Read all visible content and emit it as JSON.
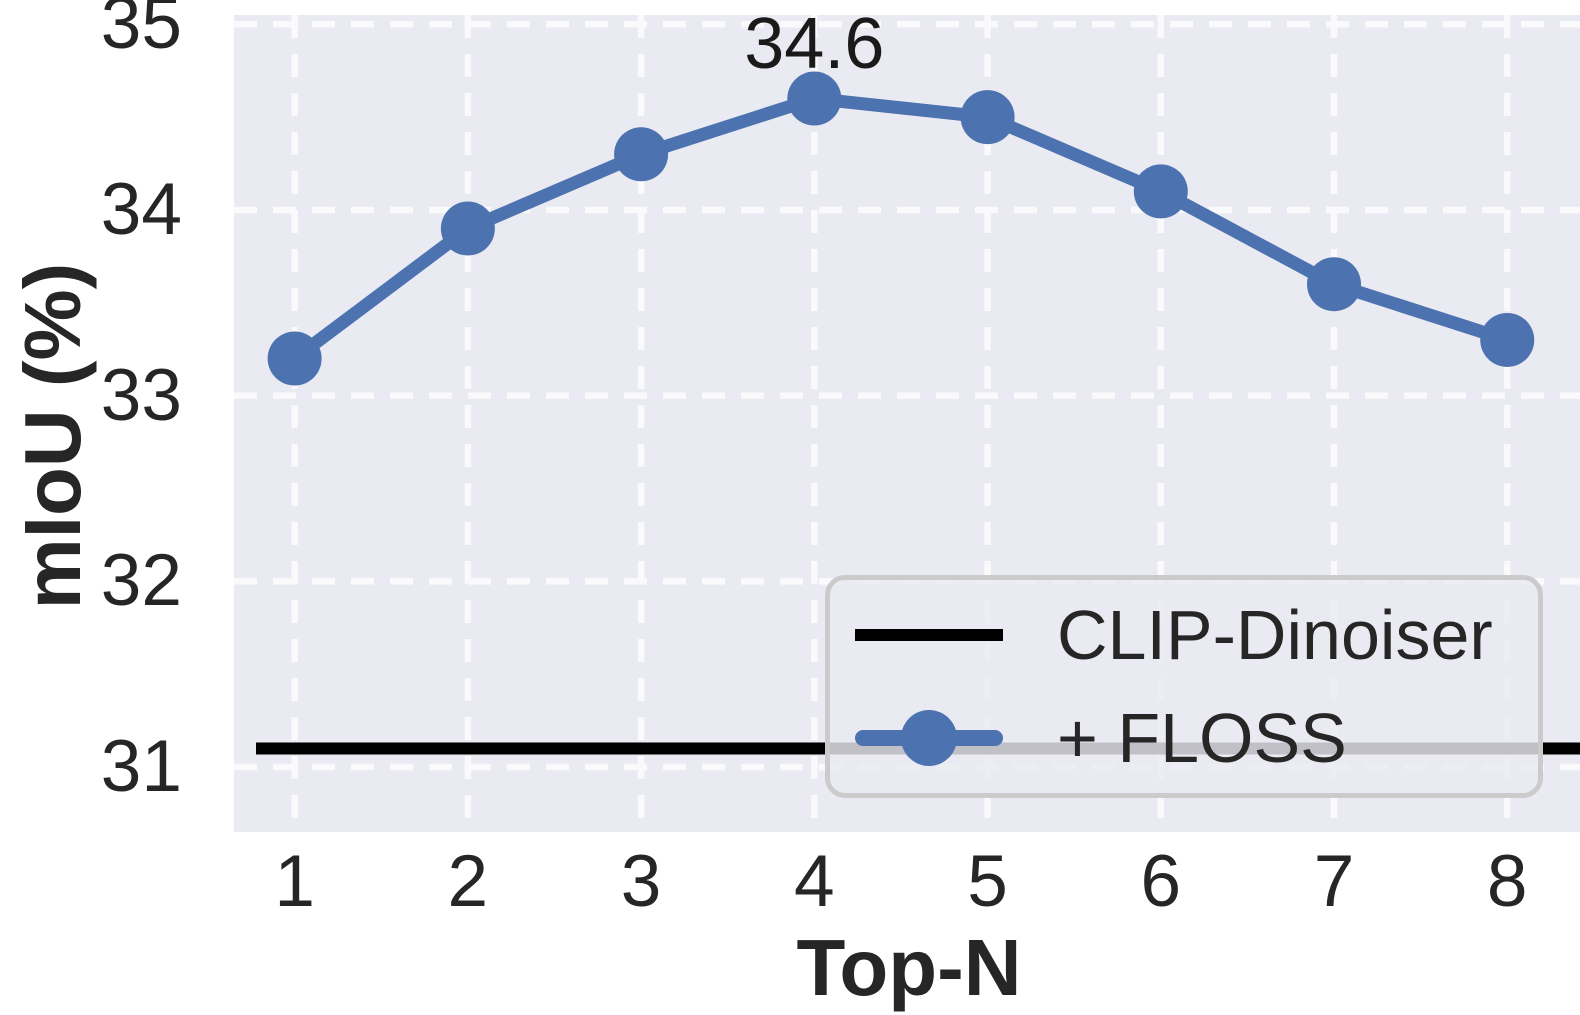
{
  "chart_data": {
    "type": "line",
    "title": "",
    "xlabel": "Top-N",
    "ylabel": "mIoU (%)",
    "x": [
      1,
      2,
      3,
      4,
      5,
      6,
      7,
      8
    ],
    "series": [
      {
        "name": "CLIP-Dinoiser",
        "type": "hline",
        "value": 31.1,
        "color": "#000000"
      },
      {
        "name": "+ FLOSS",
        "type": "line-markers",
        "values": [
          33.2,
          33.9,
          34.3,
          34.6,
          34.5,
          34.1,
          33.6,
          33.3
        ],
        "color": "#4C72B0"
      }
    ],
    "annotation": {
      "text": "34.6",
      "x": 4,
      "y": 34.6
    },
    "xticks": [
      "1",
      "2",
      "3",
      "4",
      "5",
      "6",
      "7",
      "8"
    ],
    "yticks": [
      "31",
      "32",
      "33",
      "34",
      "35"
    ],
    "ytick_values": [
      31,
      32,
      33,
      34,
      35
    ],
    "xtick_values": [
      1,
      2,
      3,
      4,
      5,
      6,
      7,
      8
    ],
    "xlim": [
      0.65,
      8.42
    ],
    "ylim": [
      30.65,
      35.05
    ],
    "grid": true,
    "grid_style": "white-dashed",
    "legend_position": "lower right"
  },
  "legend": {
    "items": [
      {
        "label": "CLIP-Dinoiser",
        "swatch": "black-line"
      },
      {
        "label": "+ FLOSS",
        "swatch": "blue-line-marker"
      }
    ]
  },
  "colors": {
    "floss_blue": "#4C72B0",
    "clip_dinoiser_black": "#000000",
    "plot_background": "#EAEAF2",
    "gridline": "#FAFAFC",
    "text": "#262626",
    "legend_border": "#CBCBCB"
  }
}
